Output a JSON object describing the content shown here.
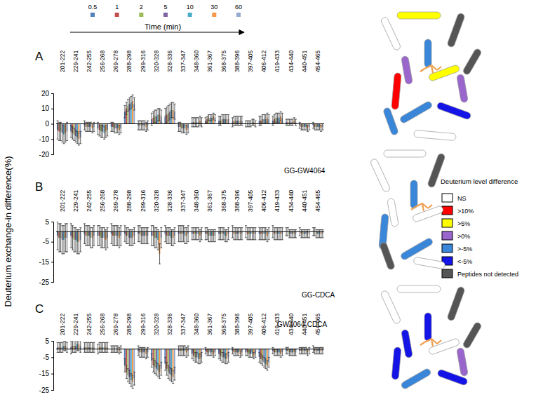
{
  "figure": {
    "y_label": "Deuterium exchange-in difference(%)",
    "legend_title": "Time (min)",
    "structure_legend": {
      "title": "Deuterium level difference",
      "items": [
        {
          "label": "NS",
          "color": "#ffffff"
        },
        {
          "label": ">10%",
          "color": "#ff0000"
        },
        {
          "label": ">5%",
          "color": "#ffff00"
        },
        {
          "label": ">0%",
          "color": "#9966cc"
        },
        {
          "label": ">-5%",
          "color": "#3a86d8"
        },
        {
          "label": "<-5%",
          "color": "#1414e6"
        },
        {
          "label": "Peptides not detected",
          "color": "#555555"
        }
      ]
    }
  },
  "chart_data": [
    {
      "type": "bar",
      "title": "A",
      "annotation": "GG-GW4064",
      "grid": false,
      "categories": [
        "201-222",
        "229-241",
        "242-255",
        "256-268",
        "269-278",
        "288-298",
        "299-316",
        "320-328",
        "328-336",
        "337-347",
        "348-360",
        "361-367",
        "368-375",
        "388-396",
        "397-405",
        "406-412",
        "419-433",
        "434-440",
        "440-451",
        "454-465"
      ],
      "ylim": [
        -20,
        20
      ],
      "yticks": [
        -20,
        -10,
        0,
        10,
        20
      ],
      "series": [
        {
          "name": "0.5",
          "color": "#4f81bd",
          "values": [
            -4,
            -5,
            -1,
            -3,
            -2,
            8,
            -1,
            3,
            5,
            -2,
            1,
            2,
            2,
            1,
            0,
            2,
            2,
            1,
            -1,
            -1
          ],
          "errors": [
            6,
            4,
            3,
            4,
            3,
            4,
            3,
            4,
            5,
            3,
            3,
            2,
            3,
            3,
            2,
            3,
            3,
            2,
            2,
            2
          ]
        },
        {
          "name": "1",
          "color": "#c0504d",
          "values": [
            -5,
            -6,
            -2,
            -4,
            -2,
            10,
            -1,
            4,
            6,
            -2,
            1,
            3,
            2,
            2,
            0,
            2,
            3,
            1,
            -2,
            -2
          ],
          "errors": [
            6,
            4,
            3,
            4,
            3,
            4,
            3,
            4,
            5,
            3,
            3,
            2,
            3,
            3,
            2,
            3,
            3,
            2,
            2,
            2
          ]
        },
        {
          "name": "2",
          "color": "#9bbb59",
          "values": [
            -5,
            -7,
            -2,
            -5,
            -3,
            12,
            -1,
            5,
            7,
            -3,
            1,
            4,
            3,
            2,
            0,
            3,
            4,
            1,
            -2,
            -2
          ],
          "errors": [
            6,
            4,
            3,
            4,
            3,
            4,
            3,
            4,
            5,
            3,
            3,
            2,
            3,
            3,
            2,
            3,
            3,
            2,
            2,
            2
          ]
        },
        {
          "name": "5",
          "color": "#8064a2",
          "values": [
            -6,
            -8,
            -2,
            -5,
            -3,
            13,
            -1,
            5,
            8,
            -3,
            1,
            4,
            3,
            2,
            0,
            3,
            4,
            1,
            -2,
            -2
          ],
          "errors": [
            6,
            4,
            3,
            4,
            3,
            4,
            3,
            4,
            5,
            3,
            3,
            2,
            3,
            3,
            2,
            3,
            3,
            2,
            2,
            2
          ]
        },
        {
          "name": "10",
          "color": "#4bacc6",
          "values": [
            -7,
            -9,
            -2,
            -6,
            -3,
            14,
            -1,
            6,
            9,
            -3,
            1,
            4,
            3,
            2,
            1,
            3,
            4,
            1,
            -2,
            -2
          ],
          "errors": [
            6,
            4,
            3,
            4,
            3,
            4,
            3,
            4,
            5,
            3,
            3,
            2,
            3,
            3,
            2,
            3,
            3,
            2,
            2,
            2
          ]
        },
        {
          "name": "30",
          "color": "#f79646",
          "values": [
            -6,
            -10,
            -3,
            -5,
            -4,
            15,
            -2,
            6,
            9,
            -4,
            2,
            5,
            3,
            2,
            1,
            4,
            5,
            2,
            -3,
            -3
          ],
          "errors": [
            6,
            4,
            3,
            4,
            3,
            4,
            3,
            4,
            5,
            3,
            3,
            2,
            3,
            3,
            2,
            3,
            3,
            2,
            2,
            2
          ]
        },
        {
          "name": "60",
          "color": "#93a9cf",
          "values": [
            -5,
            -9,
            -2,
            -4,
            -3,
            13,
            -1,
            5,
            8,
            -3,
            1,
            4,
            3,
            2,
            0,
            3,
            4,
            1,
            -2,
            -2
          ],
          "errors": [
            6,
            4,
            3,
            4,
            3,
            4,
            3,
            4,
            5,
            3,
            3,
            2,
            3,
            3,
            2,
            3,
            3,
            2,
            2,
            2
          ]
        }
      ]
    },
    {
      "type": "bar",
      "title": "B",
      "annotation": "GG-CDCA",
      "grid": false,
      "categories": [
        "201-222",
        "229-241",
        "242-255",
        "256-268",
        "269-278",
        "288-298",
        "299-316",
        "320-328",
        "328-336",
        "337-347",
        "348-360",
        "361-367",
        "368-375",
        "388-396",
        "397-405",
        "406-412",
        "419-433",
        "434-440",
        "440-451",
        "454-465"
      ],
      "ylim": [
        -25,
        5
      ],
      "yticks": [
        -25,
        -15,
        -5,
        5
      ],
      "series": [
        {
          "name": "0.5",
          "color": "#4f81bd",
          "values": [
            -2,
            -2,
            -1,
            -2,
            -1,
            -1,
            -1,
            -2,
            -1,
            -1,
            -1,
            -1,
            -1,
            0,
            0,
            -1,
            0,
            0,
            0,
            0
          ],
          "errors": [
            7,
            6,
            5,
            5,
            5,
            4,
            4,
            5,
            4,
            4,
            3,
            3,
            3,
            3,
            3,
            3,
            3,
            2,
            2,
            2
          ]
        },
        {
          "name": "1",
          "color": "#c0504d",
          "values": [
            -3,
            -3,
            -2,
            -2,
            -2,
            -2,
            -1,
            -2,
            -2,
            -1,
            -1,
            -1,
            -1,
            -1,
            -1,
            -1,
            -1,
            0,
            -1,
            0
          ],
          "errors": [
            7,
            6,
            5,
            5,
            5,
            4,
            4,
            5,
            4,
            4,
            3,
            3,
            3,
            3,
            3,
            3,
            3,
            2,
            2,
            2
          ]
        },
        {
          "name": "2",
          "color": "#9bbb59",
          "values": [
            -3,
            -4,
            -2,
            -3,
            -2,
            -2,
            -2,
            -3,
            -2,
            -1,
            -1,
            -2,
            -1,
            -1,
            -1,
            -1,
            -1,
            -1,
            -1,
            -1
          ],
          "errors": [
            7,
            6,
            5,
            5,
            5,
            4,
            4,
            5,
            4,
            4,
            3,
            3,
            3,
            3,
            3,
            3,
            3,
            2,
            2,
            2
          ]
        },
        {
          "name": "5",
          "color": "#8064a2",
          "values": [
            -4,
            -4,
            -2,
            -3,
            -2,
            -3,
            -2,
            -3,
            -2,
            -1,
            -1,
            -2,
            -1,
            -1,
            -1,
            -1,
            -1,
            -1,
            -1,
            -1
          ],
          "errors": [
            7,
            6,
            5,
            5,
            5,
            4,
            4,
            5,
            4,
            4,
            3,
            3,
            3,
            3,
            3,
            3,
            3,
            2,
            2,
            2
          ]
        },
        {
          "name": "10",
          "color": "#4bacc6",
          "values": [
            -4,
            -5,
            -3,
            -3,
            -2,
            -3,
            -2,
            -4,
            -3,
            -2,
            -1,
            -2,
            -2,
            -1,
            -1,
            -1,
            -1,
            -1,
            -1,
            -1
          ],
          "errors": [
            7,
            6,
            5,
            5,
            5,
            4,
            4,
            5,
            4,
            4,
            3,
            3,
            3,
            3,
            3,
            3,
            3,
            2,
            2,
            2
          ]
        },
        {
          "name": "30",
          "color": "#f79646",
          "values": [
            -3,
            -5,
            -3,
            -4,
            -3,
            -3,
            -2,
            -11,
            -3,
            -2,
            -2,
            -2,
            -2,
            -1,
            -1,
            -2,
            -1,
            -1,
            -1,
            -1
          ],
          "errors": [
            7,
            6,
            5,
            5,
            5,
            4,
            4,
            5,
            4,
            4,
            3,
            3,
            3,
            3,
            3,
            3,
            3,
            2,
            2,
            2
          ]
        },
        {
          "name": "60",
          "color": "#93a9cf",
          "values": [
            -3,
            -4,
            -2,
            -3,
            -2,
            -2,
            -2,
            -3,
            -2,
            -1,
            -1,
            -2,
            -1,
            -1,
            -1,
            -1,
            -1,
            -1,
            -1,
            -1
          ],
          "errors": [
            7,
            6,
            5,
            5,
            5,
            4,
            4,
            5,
            4,
            4,
            3,
            3,
            3,
            3,
            3,
            3,
            3,
            2,
            2,
            2
          ]
        }
      ]
    },
    {
      "type": "bar",
      "title": "C",
      "annotation": "GW4064-CDCA",
      "grid": false,
      "categories": [
        "201-222",
        "229-241",
        "242-255",
        "256-268",
        "269-278",
        "288-298",
        "299-316",
        "320-328",
        "328-336",
        "337-347",
        "348-360",
        "361-367",
        "368-375",
        "388-396",
        "397-405",
        "406-412",
        "419-433",
        "434-440",
        "440-451",
        "454-465"
      ],
      "ylim": [
        -25,
        5
      ],
      "yticks": [
        -25,
        -15,
        -5,
        5
      ],
      "series": [
        {
          "name": "0.5",
          "color": "#4f81bd",
          "values": [
            1,
            1,
            1,
            0,
            0,
            -10,
            -1,
            -7,
            -9,
            -1,
            -3,
            -1,
            -3,
            -1,
            -2,
            -5,
            -1,
            -1,
            -1,
            0
          ],
          "errors": [
            3,
            4,
            3,
            3,
            2,
            4,
            3,
            4,
            4,
            3,
            3,
            2,
            3,
            2,
            2,
            3,
            2,
            2,
            2,
            2
          ]
        },
        {
          "name": "1",
          "color": "#c0504d",
          "values": [
            1,
            2,
            1,
            1,
            0,
            -14,
            -2,
            -10,
            -12,
            -1,
            -4,
            -2,
            -4,
            -2,
            -2,
            -6,
            -2,
            -1,
            -1,
            -1
          ],
          "errors": [
            3,
            4,
            3,
            3,
            2,
            4,
            3,
            4,
            4,
            3,
            3,
            2,
            3,
            2,
            2,
            3,
            2,
            2,
            2,
            2
          ]
        },
        {
          "name": "2",
          "color": "#9bbb59",
          "values": [
            1,
            2,
            1,
            1,
            0,
            -16,
            -2,
            -11,
            -14,
            -1,
            -5,
            -2,
            -5,
            -2,
            -3,
            -7,
            -2,
            -2,
            -1,
            -1
          ],
          "errors": [
            3,
            4,
            3,
            3,
            2,
            4,
            3,
            4,
            4,
            3,
            3,
            2,
            3,
            2,
            2,
            3,
            2,
            2,
            2,
            2
          ]
        },
        {
          "name": "5",
          "color": "#8064a2",
          "values": [
            1,
            2,
            1,
            1,
            0,
            -17,
            -2,
            -12,
            -15,
            -1,
            -5,
            -2,
            -5,
            -2,
            -3,
            -8,
            -2,
            -2,
            -1,
            -1
          ],
          "errors": [
            3,
            4,
            3,
            3,
            2,
            4,
            3,
            4,
            4,
            3,
            3,
            2,
            3,
            2,
            2,
            3,
            2,
            2,
            2,
            2
          ]
        },
        {
          "name": "10",
          "color": "#4bacc6",
          "values": [
            2,
            3,
            1,
            1,
            0,
            -19,
            -2,
            -13,
            -16,
            -1,
            -6,
            -2,
            -6,
            -2,
            -3,
            -9,
            -2,
            -2,
            -1,
            -1
          ],
          "errors": [
            3,
            4,
            3,
            3,
            2,
            4,
            3,
            4,
            4,
            3,
            3,
            2,
            3,
            2,
            2,
            3,
            2,
            2,
            2,
            2
          ]
        },
        {
          "name": "30",
          "color": "#f79646",
          "values": [
            2,
            3,
            1,
            1,
            -1,
            -20,
            -3,
            -14,
            -17,
            -2,
            -6,
            -3,
            -6,
            -3,
            -4,
            -10,
            -3,
            -2,
            -2,
            -1
          ],
          "errors": [
            3,
            4,
            3,
            3,
            2,
            4,
            3,
            4,
            4,
            3,
            3,
            2,
            3,
            2,
            2,
            3,
            2,
            2,
            2,
            2
          ]
        },
        {
          "name": "60",
          "color": "#93a9cf",
          "values": [
            1,
            2,
            1,
            1,
            0,
            -18,
            -2,
            -12,
            -15,
            -1,
            -5,
            -2,
            -5,
            -2,
            -3,
            -8,
            -2,
            -2,
            -1,
            -1
          ],
          "errors": [
            3,
            4,
            3,
            3,
            2,
            4,
            3,
            4,
            4,
            3,
            3,
            2,
            3,
            2,
            2,
            3,
            2,
            2,
            2,
            2
          ]
        }
      ]
    }
  ]
}
